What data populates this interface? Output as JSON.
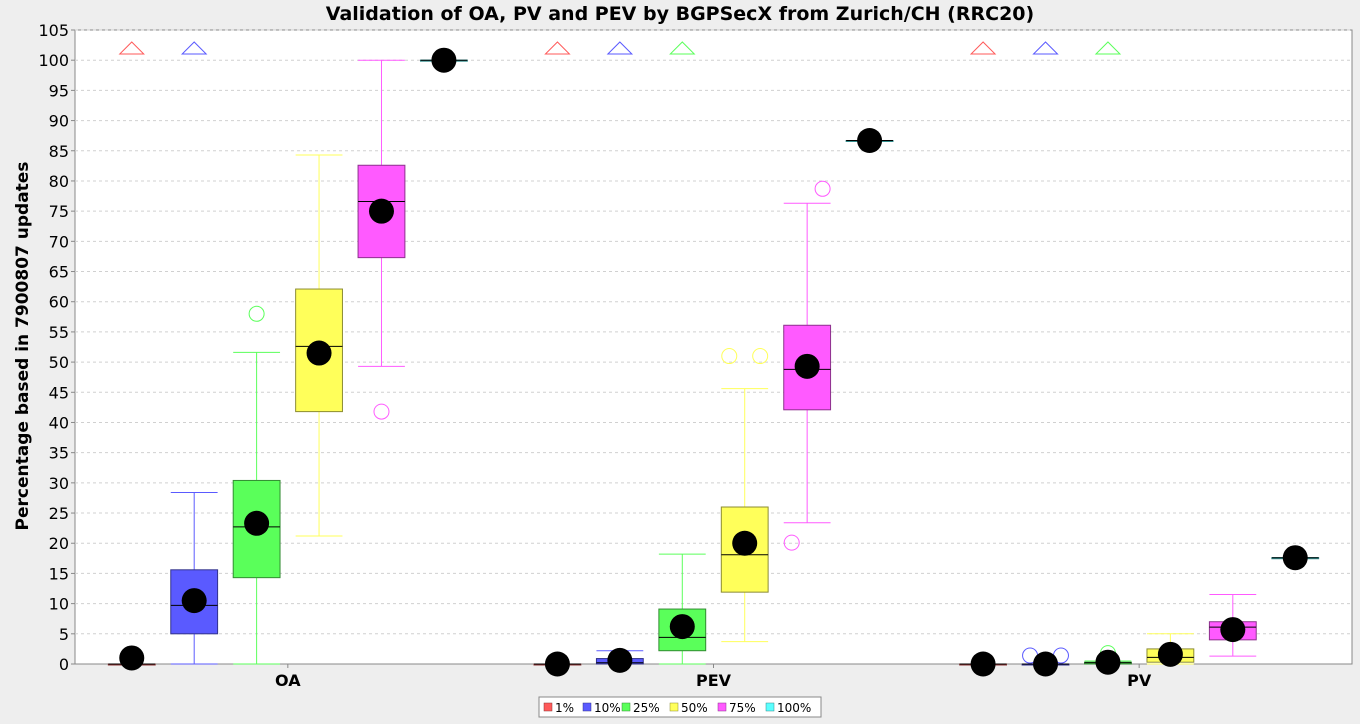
{
  "chart_data": {
    "type": "boxplot",
    "title": "Validation of OA, PV and PEV by BGPSecX from Zurich/CH (RRC20)",
    "xlabel": "",
    "ylabel": "Percentage based in 7900807 updates",
    "ylim": [
      0,
      105
    ],
    "yticks": [
      0,
      5,
      10,
      15,
      20,
      25,
      30,
      35,
      40,
      45,
      50,
      55,
      60,
      65,
      70,
      75,
      80,
      85,
      90,
      95,
      100,
      105
    ],
    "grid": true,
    "legend_position": "bottom",
    "categories": [
      "OA",
      "PEV",
      "PV"
    ],
    "series": [
      {
        "name": "1%",
        "color": "#ff5a5a",
        "boxes": [
          {
            "category": "OA",
            "min": 0,
            "q1": 0,
            "median": 0,
            "q3": 0,
            "max": 0,
            "mean": 1.0,
            "outliers": [],
            "far_outlier_above": true
          },
          {
            "category": "PEV",
            "min": 0,
            "q1": 0,
            "median": 0,
            "q3": 0,
            "max": 0,
            "mean": 0.0,
            "outliers": [],
            "far_outlier_above": true
          },
          {
            "category": "PV",
            "min": 0,
            "q1": 0,
            "median": 0,
            "q3": 0,
            "max": 0,
            "mean": 0.0,
            "outliers": [],
            "far_outlier_above": true
          }
        ]
      },
      {
        "name": "10%",
        "color": "#5a5aff",
        "boxes": [
          {
            "category": "OA",
            "min": 0,
            "q1": 5.0,
            "median": 9.7,
            "q3": 15.6,
            "max": 28.4,
            "mean": 10.5,
            "outliers": [],
            "far_outlier_above": true
          },
          {
            "category": "PEV",
            "min": 0,
            "q1": 0,
            "median": 0.2,
            "q3": 0.9,
            "max": 2.2,
            "mean": 0.6,
            "outliers": [],
            "far_outlier_above": true
          },
          {
            "category": "PV",
            "min": 0,
            "q1": 0,
            "median": 0,
            "q3": 0,
            "max": 0,
            "mean": 0.0,
            "outliers": [
              1.4,
              1.4
            ],
            "far_outlier_above": true
          }
        ]
      },
      {
        "name": "25%",
        "color": "#5aff5a",
        "boxes": [
          {
            "category": "OA",
            "min": 0,
            "q1": 14.3,
            "median": 22.7,
            "q3": 30.4,
            "max": 51.6,
            "mean": 23.3,
            "outliers": [
              58.0
            ],
            "far_outlier_above": false
          },
          {
            "category": "PEV",
            "min": 0,
            "q1": 2.2,
            "median": 4.4,
            "q3": 9.1,
            "max": 18.2,
            "mean": 6.2,
            "outliers": [],
            "far_outlier_above": true
          },
          {
            "category": "PV",
            "min": 0,
            "q1": 0,
            "median": 0.2,
            "q3": 0.3,
            "max": 0.5,
            "mean": 0.3,
            "outliers": [
              1.8
            ],
            "far_outlier_above": true
          }
        ]
      },
      {
        "name": "50%",
        "color": "#ffff5a",
        "boxes": [
          {
            "category": "OA",
            "min": 21.2,
            "q1": 41.8,
            "median": 52.6,
            "q3": 62.1,
            "max": 84.3,
            "mean": 51.5,
            "outliers": [],
            "far_outlier_above": false
          },
          {
            "category": "PEV",
            "min": 3.7,
            "q1": 11.9,
            "median": 18.1,
            "q3": 26.0,
            "max": 45.6,
            "mean": 20.0,
            "outliers": [
              51.0,
              51.0
            ],
            "far_outlier_above": false
          },
          {
            "category": "PV",
            "min": 0,
            "q1": 0.3,
            "median": 1.1,
            "q3": 2.5,
            "max": 5.0,
            "mean": 1.6,
            "outliers": [],
            "far_outlier_above": false
          }
        ]
      },
      {
        "name": "75%",
        "color": "#ff5aff",
        "boxes": [
          {
            "category": "OA",
            "min": 49.3,
            "q1": 67.3,
            "median": 76.6,
            "q3": 82.6,
            "max": 100.0,
            "mean": 75.0,
            "outliers": [
              41.8
            ],
            "far_outlier_above": false
          },
          {
            "category": "PEV",
            "min": 23.4,
            "q1": 42.1,
            "median": 48.8,
            "q3": 56.1,
            "max": 76.3,
            "mean": 49.3,
            "outliers": [
              20.1,
              78.7
            ],
            "far_outlier_above": false
          },
          {
            "category": "PV",
            "min": 1.3,
            "q1": 4.0,
            "median": 6.1,
            "q3": 7.0,
            "max": 11.5,
            "mean": 5.7,
            "outliers": [],
            "far_outlier_above": false
          }
        ]
      },
      {
        "name": "100%",
        "color": "#5affff",
        "boxes": [
          {
            "category": "OA",
            "min": 100,
            "q1": 100,
            "median": 100,
            "q3": 100,
            "max": 100,
            "mean": 100,
            "outliers": [],
            "far_outlier_above": false
          },
          {
            "category": "PEV",
            "min": 86.7,
            "q1": 86.7,
            "median": 86.7,
            "q3": 86.7,
            "max": 86.7,
            "mean": 86.7,
            "outliers": [],
            "far_outlier_above": false
          },
          {
            "category": "PV",
            "min": 17.6,
            "q1": 17.6,
            "median": 17.6,
            "q3": 17.6,
            "max": 17.6,
            "mean": 17.6,
            "outliers": [],
            "far_outlier_above": false
          }
        ]
      }
    ]
  }
}
